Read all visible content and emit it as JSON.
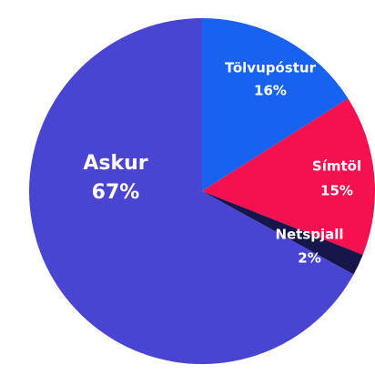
{
  "chart_data": {
    "type": "pie",
    "categories": [
      "Tölvupóstur",
      "Símtöl",
      "Netspjall",
      "Askur"
    ],
    "values": [
      16,
      15,
      2,
      67
    ],
    "value_labels": [
      "16%",
      "15%",
      "2%",
      "67%"
    ],
    "colors": [
      "#1862f2",
      "#f5114f",
      "#16164a",
      "#4a44d2"
    ]
  }
}
